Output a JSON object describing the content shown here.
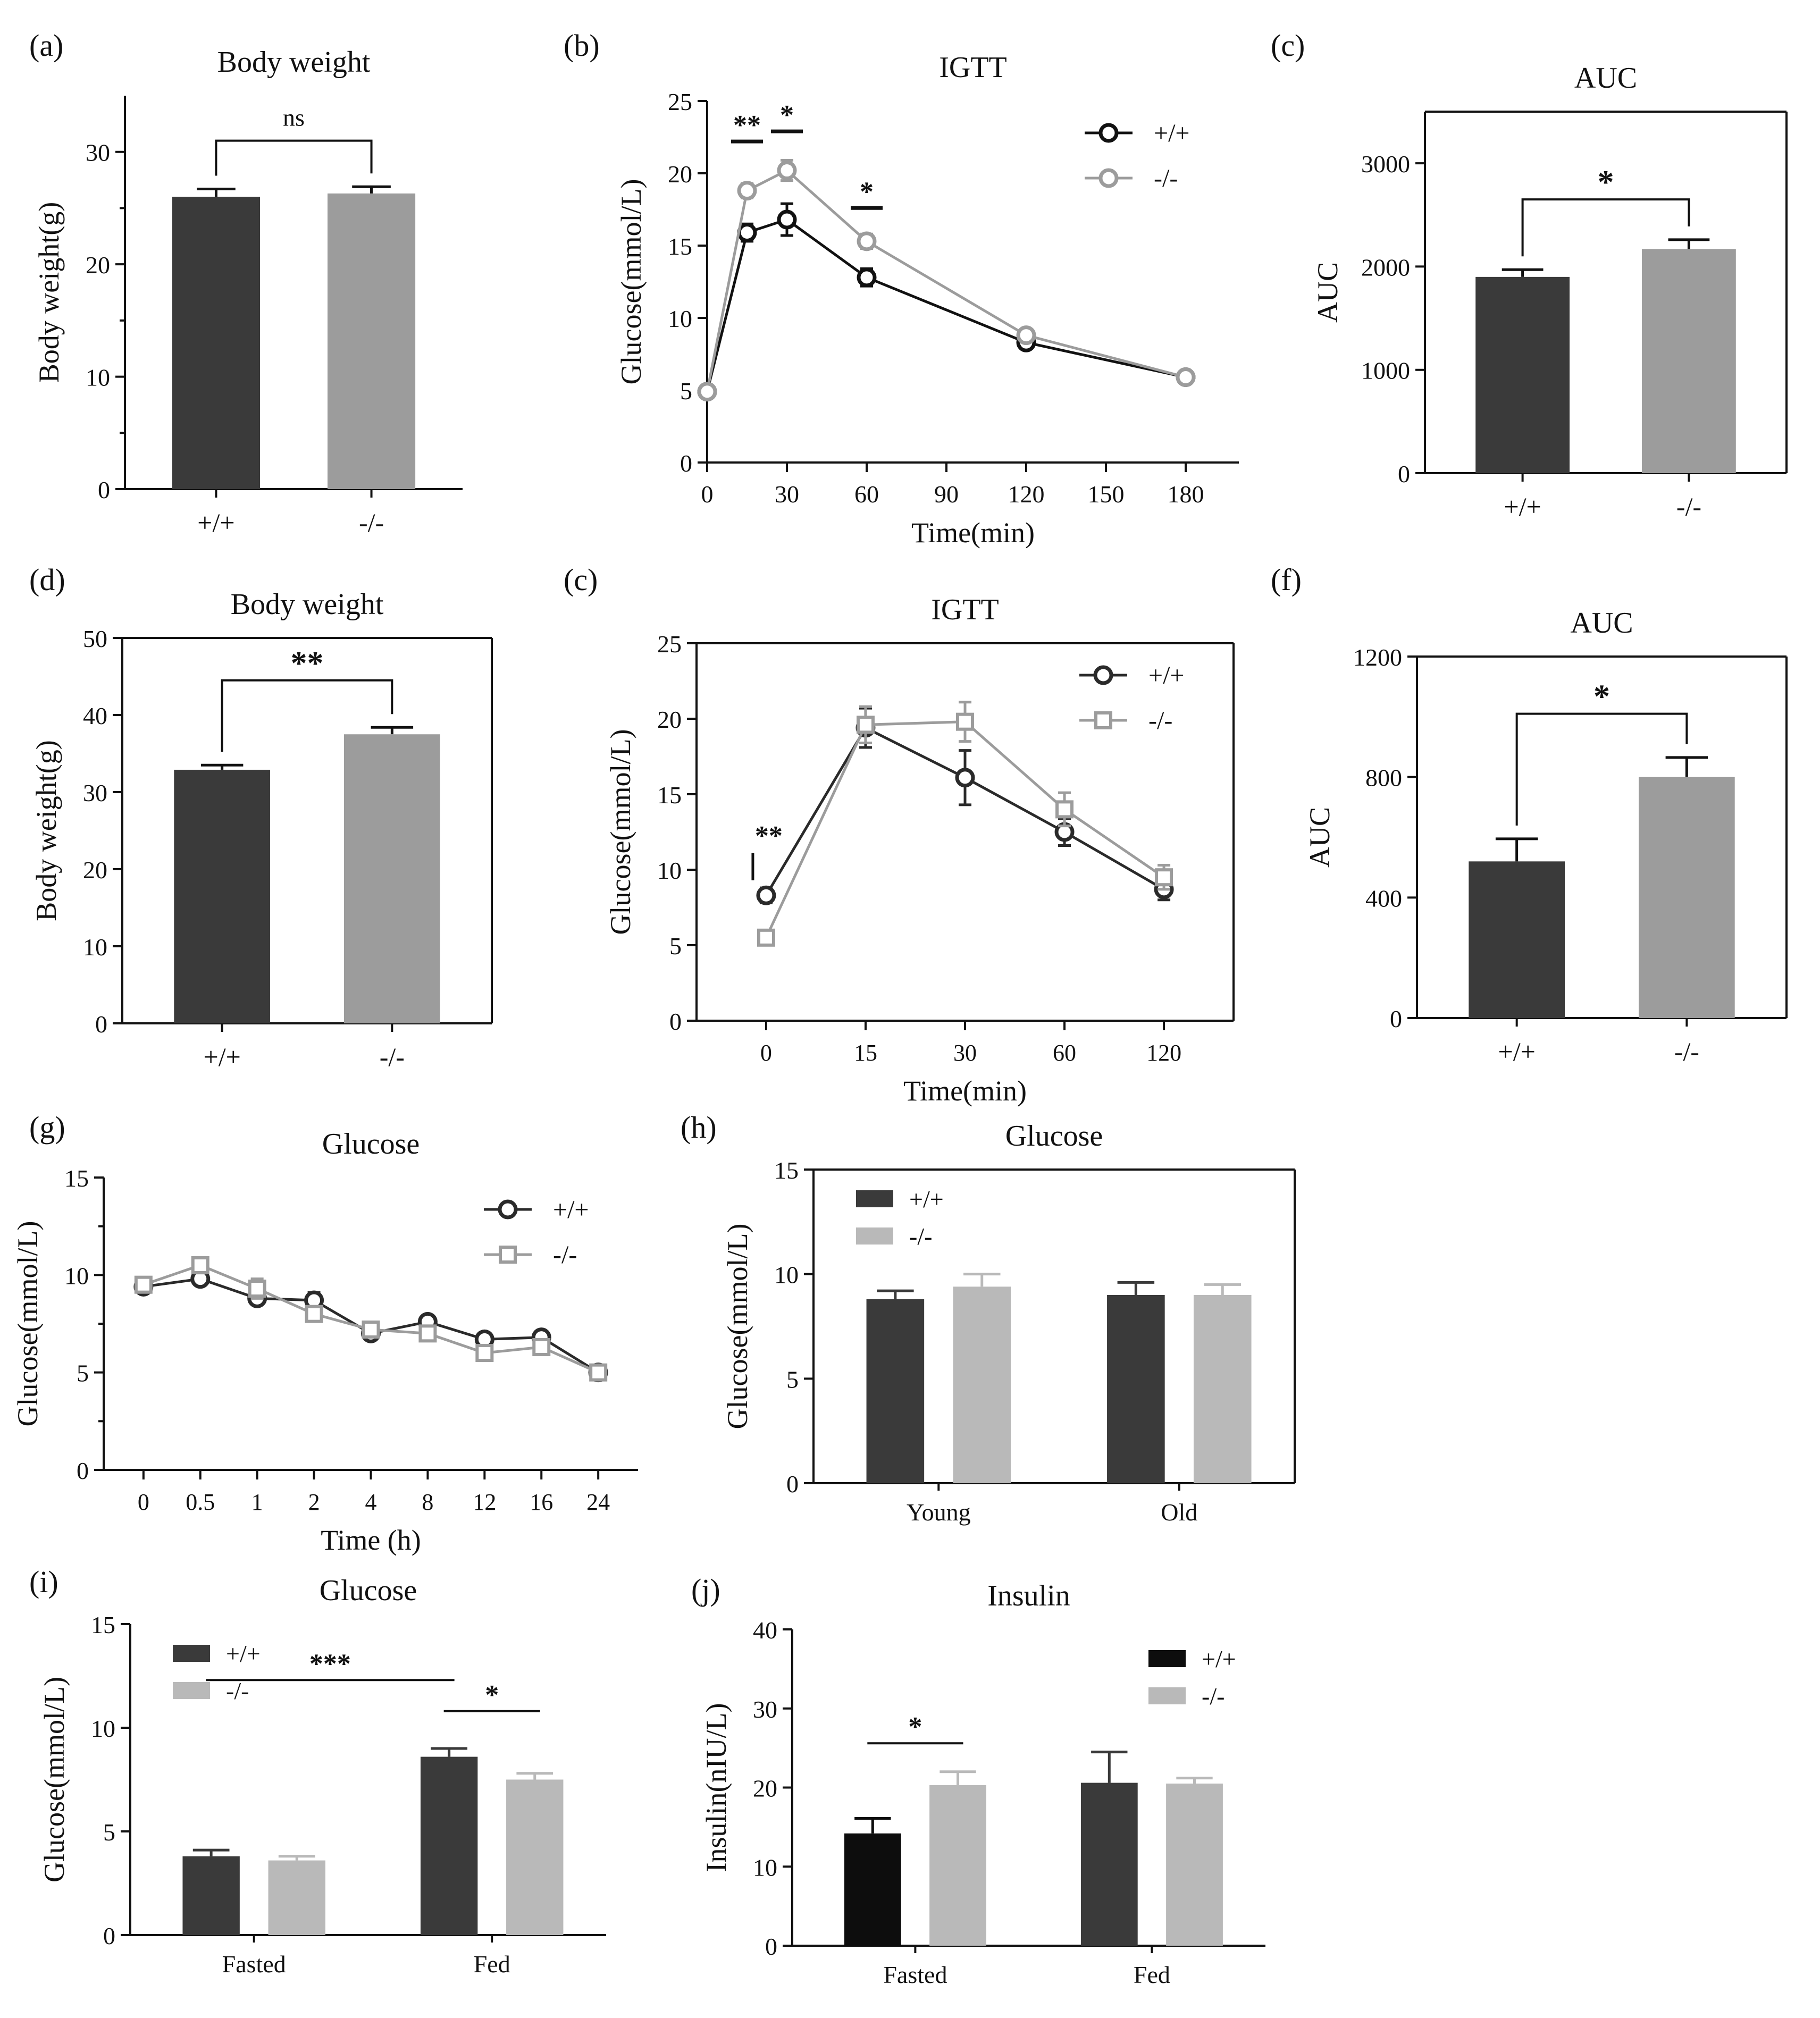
{
  "figure": {
    "colors": {
      "dark": "#3a3a3a",
      "gray": "#9c9c9c",
      "light_gray": "#b9b9b9",
      "black": "#0d0d0d",
      "axis": "#111111"
    }
  },
  "chart_data": [
    {
      "id": "a",
      "letter": "(a)",
      "type": "bar",
      "title": "Body weight",
      "xlabel": "",
      "ylabel": "Body weight(g)",
      "ylim": [
        0,
        35
      ],
      "yticks": [
        0,
        10,
        20,
        30
      ],
      "minor_yticks": [
        5,
        15,
        25
      ],
      "categories": [
        "+/+",
        "-/-"
      ],
      "series": [
        {
          "values": [
            26.0,
            26.3
          ],
          "errors": [
            0.7,
            0.6
          ],
          "colors": [
            "#3a3a3a",
            "#9c9c9c"
          ]
        }
      ],
      "annotations": [
        {
          "label": "ns",
          "type": "bracket",
          "between": [
            0,
            1
          ],
          "y": 31
        }
      ],
      "frame": "left-bottom"
    },
    {
      "id": "b",
      "letter": "(b)",
      "type": "line",
      "title": "IGTT",
      "xlabel": "Time(min)",
      "ylabel": "Glucose(mmol/L)",
      "xlim": [
        0,
        200
      ],
      "xticks": [
        0,
        30,
        60,
        90,
        120,
        150,
        180
      ],
      "ylim": [
        0,
        25
      ],
      "yticks": [
        0,
        5,
        10,
        15,
        20,
        25
      ],
      "series": [
        {
          "name": "+/+",
          "marker": "circle",
          "color": "#111111",
          "x": [
            0,
            15,
            30,
            60,
            120,
            180
          ],
          "y": [
            4.9,
            15.9,
            16.8,
            12.8,
            8.3,
            5.9
          ],
          "errors": [
            0.2,
            0.6,
            1.1,
            0.6,
            0.4,
            0.2
          ]
        },
        {
          "name": "-/-",
          "marker": "circle",
          "color": "#9c9c9c",
          "x": [
            0,
            15,
            30,
            60,
            120,
            180
          ],
          "y": [
            4.9,
            18.8,
            20.2,
            15.3,
            8.8,
            5.9
          ],
          "errors": [
            0.2,
            0.5,
            0.7,
            0.5,
            0.4,
            0.2
          ]
        }
      ],
      "annotations": [
        {
          "label": "**",
          "x": 15,
          "y": 22.2
        },
        {
          "label": "*",
          "x": 30,
          "y": 22.9
        },
        {
          "label": "*",
          "x": 60,
          "y": 17.6
        }
      ],
      "legend": "top-right",
      "frame": "left-bottom"
    },
    {
      "id": "c1",
      "letter": "(c)",
      "type": "bar",
      "title": "AUC",
      "xlabel": "",
      "ylabel": "AUC",
      "ylim": [
        0,
        3500
      ],
      "yticks": [
        0,
        1000,
        2000,
        3000
      ],
      "categories": [
        "+/+",
        "-/-"
      ],
      "series": [
        {
          "values": [
            1900,
            2170
          ],
          "errors": [
            70,
            90
          ],
          "colors": [
            "#3a3a3a",
            "#9c9c9c"
          ]
        }
      ],
      "annotations": [
        {
          "label": "*",
          "type": "bracket",
          "between": [
            0,
            1
          ],
          "y": 2650
        }
      ],
      "frame": "box"
    },
    {
      "id": "d",
      "letter": "(d)",
      "type": "bar",
      "title": "Body weight",
      "xlabel": "",
      "ylabel": "Body weight(g)",
      "ylim": [
        0,
        50
      ],
      "yticks": [
        0,
        10,
        20,
        30,
        40,
        50
      ],
      "categories": [
        "+/+",
        "-/-"
      ],
      "series": [
        {
          "values": [
            32.9,
            37.5
          ],
          "errors": [
            0.6,
            0.9
          ],
          "colors": [
            "#3a3a3a",
            "#9c9c9c"
          ]
        }
      ],
      "annotations": [
        {
          "label": "**",
          "type": "bracket",
          "between": [
            0,
            1
          ],
          "y": 44.5
        }
      ],
      "frame": "box"
    },
    {
      "id": "e",
      "letter": "(c)",
      "type": "line",
      "title": "IGTT",
      "xlabel": "Time(min)",
      "ylabel": "Glucose(mmol/L)",
      "categories": [
        "0",
        "15",
        "30",
        "60",
        "120"
      ],
      "ylim": [
        0,
        25
      ],
      "yticks": [
        0,
        5,
        10,
        15,
        20,
        25
      ],
      "series": [
        {
          "name": "+/+",
          "marker": "circle",
          "color": "#2a2a2a",
          "y": [
            8.3,
            19.4,
            16.1,
            12.5,
            8.7
          ],
          "errors": [
            0.5,
            1.3,
            1.8,
            0.9,
            0.7
          ]
        },
        {
          "name": "-/-",
          "marker": "square",
          "color": "#9c9c9c",
          "y": [
            5.5,
            19.6,
            19.8,
            14.0,
            9.5
          ],
          "errors": [
            0.3,
            1.2,
            1.3,
            1.1,
            0.8
          ]
        }
      ],
      "annotations": [
        {
          "label": "**",
          "type": "vbar",
          "at": 0,
          "y1": 8.3,
          "y2": 11.3
        }
      ],
      "legend": "top-right",
      "frame": "box"
    },
    {
      "id": "f",
      "letter": "(f)",
      "type": "bar",
      "title": "AUC",
      "xlabel": "",
      "ylabel": "AUC",
      "ylim": [
        0,
        1200
      ],
      "yticks": [
        0,
        400,
        800,
        1200
      ],
      "categories": [
        "+/+",
        "-/-"
      ],
      "series": [
        {
          "values": [
            520,
            800
          ],
          "errors": [
            75,
            65
          ],
          "colors": [
            "#3a3a3a",
            "#9c9c9c"
          ]
        }
      ],
      "annotations": [
        {
          "label": "*",
          "type": "bracket",
          "between": [
            0,
            1
          ],
          "y": 1010
        }
      ],
      "frame": "box"
    },
    {
      "id": "g",
      "letter": "(g)",
      "type": "line",
      "title": "Glucose",
      "xlabel": "Time (h)",
      "ylabel": "Glucose(mmol/L)",
      "categories": [
        "0",
        "0.5",
        "1",
        "2",
        "4",
        "8",
        "12",
        "16",
        "24"
      ],
      "ylim": [
        0,
        15
      ],
      "yticks": [
        0,
        5,
        10,
        15
      ],
      "minor_yticks": [
        2.5,
        7.5,
        12.5
      ],
      "series": [
        {
          "name": "+/+",
          "marker": "circle",
          "color": "#2a2a2a",
          "y": [
            9.4,
            9.8,
            8.8,
            8.7,
            7.0,
            7.6,
            6.7,
            6.8,
            5.0
          ],
          "errors": [
            0.2,
            0.3,
            0.3,
            0.4,
            0.3,
            0.2,
            0.3,
            0.2,
            0.2
          ]
        },
        {
          "name": "-/-",
          "marker": "square",
          "color": "#9c9c9c",
          "y": [
            9.5,
            10.5,
            9.3,
            8.0,
            7.2,
            7.0,
            6.0,
            6.3,
            5.0
          ],
          "errors": [
            0.2,
            0.4,
            0.5,
            0.3,
            0.3,
            0.2,
            0.3,
            0.2,
            0.2
          ]
        }
      ],
      "legend": "top-right",
      "frame": "left-bottom"
    },
    {
      "id": "h",
      "letter": "(h)",
      "type": "bar",
      "title": "Glucose",
      "xlabel": "",
      "ylabel": "Glucose(mmol/L)",
      "ylim": [
        0,
        15
      ],
      "yticks": [
        0,
        5,
        10,
        15
      ],
      "categories": [
        "Young",
        "Old"
      ],
      "series": [
        {
          "name": "+/+",
          "values": [
            8.8,
            9.0
          ],
          "errors": [
            0.4,
            0.6
          ],
          "color": "#3a3a3a"
        },
        {
          "name": "-/-",
          "values": [
            9.4,
            9.0
          ],
          "errors": [
            0.6,
            0.5
          ],
          "color": "#b9b9b9"
        }
      ],
      "legend": "top-left",
      "frame": "box"
    },
    {
      "id": "i",
      "letter": "(i)",
      "type": "bar",
      "title": "Glucose",
      "xlabel": "",
      "ylabel": "Glucose(mmol/L)",
      "ylim": [
        0,
        15
      ],
      "yticks": [
        0,
        5,
        10,
        15
      ],
      "categories": [
        "Fasted",
        "Fed"
      ],
      "series": [
        {
          "name": "+/+",
          "values": [
            3.8,
            8.6
          ],
          "errors": [
            0.3,
            0.4
          ],
          "color": "#3a3a3a"
        },
        {
          "name": "-/-",
          "values": [
            3.6,
            7.5
          ],
          "errors": [
            0.2,
            0.3
          ],
          "color": "#b9b9b9"
        }
      ],
      "annotations": [
        {
          "label": "***",
          "type": "line",
          "from": [
            0,
            0
          ],
          "to": [
            1,
            0
          ],
          "y": 12.3
        },
        {
          "label": "*",
          "type": "line",
          "from": [
            1,
            0
          ],
          "to": [
            1,
            1
          ],
          "y": 10.8
        }
      ],
      "legend": "top-left",
      "frame": "left-bottom"
    },
    {
      "id": "j",
      "letter": "(j)",
      "type": "bar",
      "title": "Insulin",
      "xlabel": "",
      "ylabel": "Insulin(nIU/L)",
      "ylim": [
        0,
        40
      ],
      "yticks": [
        0,
        10,
        20,
        30,
        40
      ],
      "categories": [
        "Fasted",
        "Fed"
      ],
      "series": [
        {
          "name": "+/+",
          "values": [
            14.2,
            20.6
          ],
          "errors": [
            1.9,
            3.9
          ],
          "color": "#0d0d0d",
          "second_color": "#3a3a3a"
        },
        {
          "name": "-/-",
          "values": [
            20.3,
            20.5
          ],
          "errors": [
            1.7,
            0.7
          ],
          "color": "#b9b9b9"
        }
      ],
      "annotations": [
        {
          "label": "*",
          "type": "line",
          "from": [
            0,
            0
          ],
          "to": [
            0,
            1
          ],
          "y": 25.6
        }
      ],
      "legend": "top-right",
      "frame": "left-bottom"
    }
  ]
}
